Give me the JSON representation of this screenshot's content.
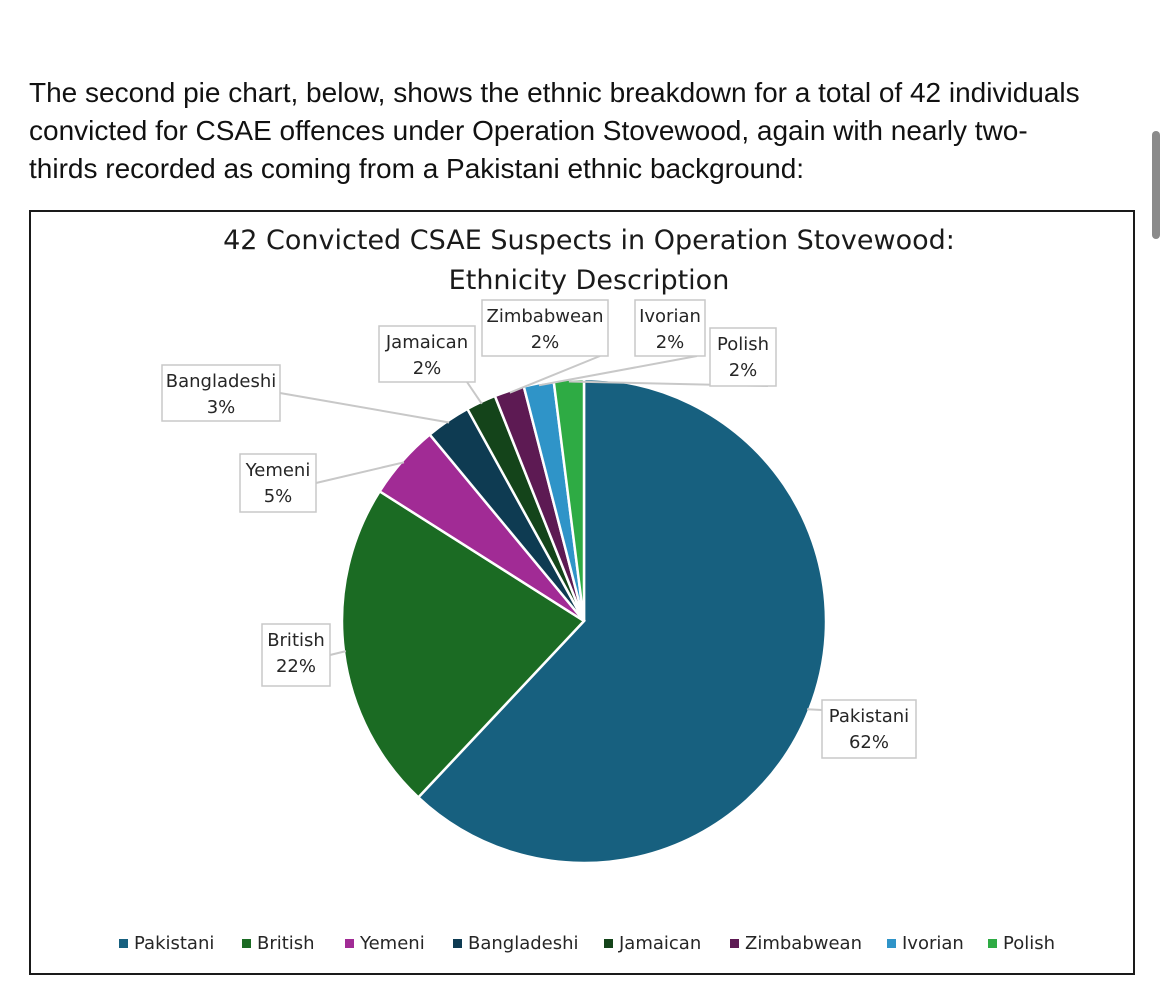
{
  "intro": {
    "line1": "The second pie chart, below, shows the ethnic breakdown for a total of 42 individuals",
    "line2": "convicted for CSAE offences under Operation Stovewood, again with nearly two-",
    "line3": "thirds recorded as coming from a Pakistani ethnic background:"
  },
  "chart_data": {
    "type": "pie",
    "title_line1": "42 Convicted CSAE Suspects in Operation Stovewood:",
    "title_line2": "Ethnicity Description",
    "legend_position": "bottom",
    "slices": [
      {
        "name": "Pakistani",
        "value": 62,
        "label": "62%",
        "color": "#17607f"
      },
      {
        "name": "British",
        "value": 22,
        "label": "22%",
        "color": "#1b6b23"
      },
      {
        "name": "Yemeni",
        "value": 5,
        "label": "5%",
        "color": "#a12b95"
      },
      {
        "name": "Bangladeshi",
        "value": 3,
        "label": "3%",
        "color": "#0e3b52"
      },
      {
        "name": "Jamaican",
        "value": 2,
        "label": "2%",
        "color": "#14441a"
      },
      {
        "name": "Zimbabwean",
        "value": 2,
        "label": "2%",
        "color": "#5d1a53"
      },
      {
        "name": "Ivorian",
        "value": 2,
        "label": "2%",
        "color": "#2f94c8"
      },
      {
        "name": "Polish",
        "value": 2,
        "label": "2%",
        "color": "#2eab44"
      }
    ]
  }
}
